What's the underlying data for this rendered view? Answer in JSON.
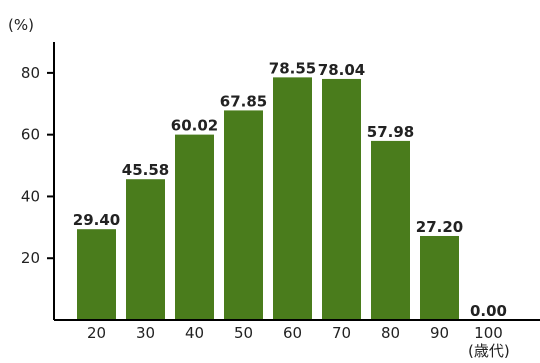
{
  "chart_data": {
    "type": "bar",
    "title": "",
    "xlabel": "(歳代)",
    "ylabel": "(%)",
    "categories": [
      "20",
      "30",
      "40",
      "50",
      "60",
      "70",
      "80",
      "90",
      "100"
    ],
    "values": [
      29.4,
      45.58,
      60.02,
      67.85,
      78.55,
      78.04,
      57.98,
      27.2,
      0.0
    ],
    "value_labels": [
      "29.40",
      "45.58",
      "60.02",
      "67.85",
      "78.55",
      "78.04",
      "57.98",
      "27.20",
      "0.00"
    ],
    "yticks": [
      "20",
      "40",
      "60",
      "80"
    ],
    "ylim": [
      0,
      90
    ],
    "grid": false,
    "colors": {
      "bar": "#4a7c1c",
      "axis": "#000000"
    }
  }
}
